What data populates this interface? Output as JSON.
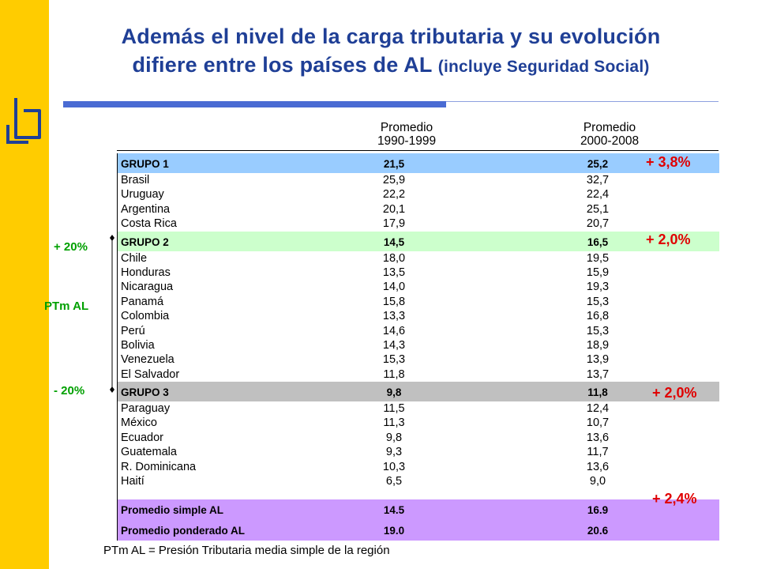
{
  "title": {
    "line1": "Además el nivel de la carga tributaria y su evolución",
    "line2_main": "difiere entre los países de AL",
    "line2_sub": "(incluye Seguridad Social)"
  },
  "columns": {
    "col1": {
      "line1": "Promedio",
      "line2": "1990-1999"
    },
    "col2": {
      "line1": "Promedio",
      "line2": "2000-2008"
    }
  },
  "rows": [
    {
      "type": "g1",
      "name": "GRUPO 1",
      "v1": "21,5",
      "v2": "25,2"
    },
    {
      "type": "country",
      "name": "Brasil",
      "v1": "25,9",
      "v2": "32,7"
    },
    {
      "type": "country",
      "name": "Uruguay",
      "v1": "22,2",
      "v2": "22,4"
    },
    {
      "type": "country",
      "name": "Argentina",
      "v1": "20,1",
      "v2": "25,1"
    },
    {
      "type": "country",
      "name": "Costa Rica",
      "v1": "17,9",
      "v2": "20,7"
    },
    {
      "type": "g2",
      "name": "GRUPO 2",
      "v1": "14,5",
      "v2": "16,5"
    },
    {
      "type": "country",
      "name": "Chile",
      "v1": "18,0",
      "v2": "19,5"
    },
    {
      "type": "country",
      "name": "Honduras",
      "v1": "13,5",
      "v2": "15,9"
    },
    {
      "type": "country",
      "name": "Nicaragua",
      "v1": "14,0",
      "v2": "19,3"
    },
    {
      "type": "country",
      "name": "Panamá",
      "v1": "15,8",
      "v2": "15,3"
    },
    {
      "type": "country",
      "name": "Colombia",
      "v1": "13,3",
      "v2": "16,8"
    },
    {
      "type": "country",
      "name": "Perú",
      "v1": "14,6",
      "v2": "15,3"
    },
    {
      "type": "country",
      "name": "Bolivia",
      "v1": "14,3",
      "v2": "18,9"
    },
    {
      "type": "country",
      "name": "Venezuela",
      "v1": "15,3",
      "v2": "13,9"
    },
    {
      "type": "country",
      "name": "El Salvador",
      "v1": "11,8",
      "v2": "13,7"
    },
    {
      "type": "g3",
      "name": "GRUPO 3",
      "v1": "9,8",
      "v2": "11,8"
    },
    {
      "type": "country",
      "name": "Paraguay",
      "v1": "11,5",
      "v2": "12,4"
    },
    {
      "type": "country",
      "name": "México",
      "v1": "11,3",
      "v2": "10,7"
    },
    {
      "type": "country",
      "name": "Ecuador",
      "v1": "9,8",
      "v2": "13,6"
    },
    {
      "type": "country",
      "name": "Guatemala",
      "v1": "9,3",
      "v2": "11,7"
    },
    {
      "type": "country",
      "name": "R. Dominicana",
      "v1": "10,3",
      "v2": "13,6"
    },
    {
      "type": "country",
      "name": "Haití",
      "v1": "6,5",
      "v2": "9,0"
    },
    {
      "type": "gap"
    },
    {
      "type": "avg",
      "name": "Promedio simple AL",
      "v1": "14.5",
      "v2": "16.9"
    },
    {
      "type": "avg",
      "name": "Promedio ponderado AL",
      "v1": "19.0",
      "v2": "20.6"
    }
  ],
  "changes": {
    "group1": "+ 3,8%",
    "group2": "+ 2,0%",
    "group3": "+ 2,0%",
    "average": "+ 2,4%"
  },
  "side_labels": {
    "upper": "+ 20%",
    "middle": "PTm AL",
    "lower": "- 20%"
  },
  "footnote": "PTm AL = Presión Tributaria media simple de la región",
  "colors": {
    "title": "#1f3f96",
    "sidebar": "#ffcc00",
    "group1": "#99ccff",
    "group2": "#ccffcc",
    "group3": "#c0c0c0",
    "average": "#cc99ff",
    "change_text": "#e00000",
    "side_label": "#00a000"
  }
}
